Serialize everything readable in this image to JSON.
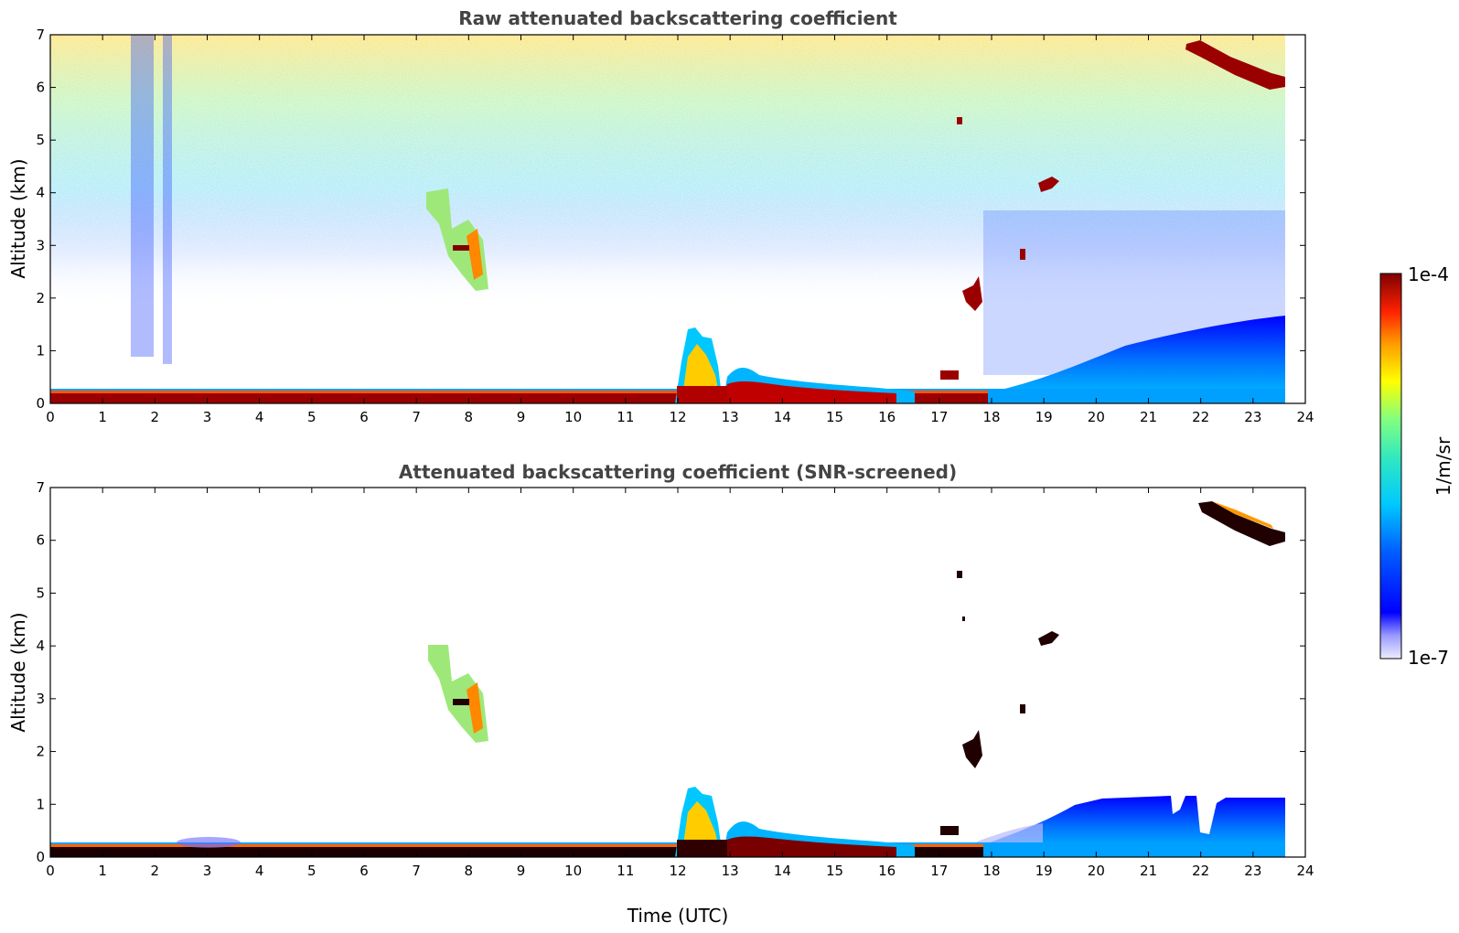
{
  "chart_data": [
    {
      "type": "heatmap",
      "title": "Raw attenuated backscattering coefficient",
      "xlabel": "",
      "ylabel": "Altitude (km)",
      "xlim": [
        0,
        24
      ],
      "ylim": [
        0,
        7
      ],
      "xticks": [
        "0",
        "1",
        "2",
        "3",
        "4",
        "5",
        "6",
        "7",
        "8",
        "9",
        "10",
        "11",
        "12",
        "13",
        "14",
        "15",
        "16",
        "17",
        "18",
        "19",
        "20",
        "21",
        "22",
        "23",
        "24"
      ],
      "yticks": [
        "0",
        "1",
        "2",
        "3",
        "4",
        "5",
        "6",
        "7"
      ],
      "data_end_time": 23.6,
      "features": [
        {
          "label": "surface layer",
          "t": [
            0,
            23.6
          ],
          "alt": [
            0,
            0.25
          ],
          "level": "high"
        },
        {
          "label": "boundary layer clouds",
          "t": [
            12,
            13
          ],
          "alt": [
            0,
            1.4
          ],
          "level": "medium"
        },
        {
          "label": "aerosol layer",
          "t": [
            13,
            16.5
          ],
          "alt": [
            0,
            0.7
          ],
          "level": "medium"
        },
        {
          "label": "mid-level cloud",
          "t": [
            7.2,
            8.4
          ],
          "alt": [
            2.2,
            4.0
          ],
          "level": "medium"
        },
        {
          "label": "cirrus",
          "t": [
            21.8,
            23.6
          ],
          "alt": [
            5.9,
            6.8
          ],
          "level": "high"
        },
        {
          "label": "cloud",
          "t": [
            19,
            19.3
          ],
          "alt": [
            4.0,
            4.3
          ],
          "level": "high"
        },
        {
          "label": "cloud",
          "t": [
            17.5,
            17.8
          ],
          "alt": [
            1.8,
            2.4
          ],
          "level": "high"
        },
        {
          "label": "noisy background",
          "t": [
            0,
            23.6
          ],
          "alt": [
            0.5,
            7
          ],
          "level": "noise"
        }
      ]
    },
    {
      "type": "heatmap",
      "title": "Attenuated backscattering coefficient (SNR-screened)",
      "xlabel": "Time (UTC)",
      "ylabel": "Altitude (km)",
      "xlim": [
        0,
        24
      ],
      "ylim": [
        0,
        7
      ],
      "xticks": [
        "0",
        "1",
        "2",
        "3",
        "4",
        "5",
        "6",
        "7",
        "8",
        "9",
        "10",
        "11",
        "12",
        "13",
        "14",
        "15",
        "16",
        "17",
        "18",
        "19",
        "20",
        "21",
        "22",
        "23",
        "24"
      ],
      "yticks": [
        "0",
        "1",
        "2",
        "3",
        "4",
        "5",
        "6",
        "7"
      ],
      "data_end_time": 23.6,
      "features": [
        {
          "label": "surface layer",
          "t": [
            0,
            23.6
          ],
          "alt": [
            0,
            0.25
          ],
          "level": "high"
        },
        {
          "label": "boundary layer clouds",
          "t": [
            12,
            13
          ],
          "alt": [
            0,
            1.2
          ],
          "level": "medium"
        },
        {
          "label": "aerosol layer",
          "t": [
            18,
            23.6
          ],
          "alt": [
            0,
            1.2
          ],
          "level": "low"
        },
        {
          "label": "mid-level cloud",
          "t": [
            7.2,
            8.4
          ],
          "alt": [
            2.2,
            4.0
          ],
          "level": "medium"
        },
        {
          "label": "cirrus",
          "t": [
            22,
            23.6
          ],
          "alt": [
            5.9,
            6.7
          ],
          "level": "high"
        }
      ]
    }
  ],
  "colorbar": {
    "label": "1/m/sr",
    "max_label": "1e-4",
    "min_label": "1e-7",
    "scale": "log",
    "colors": [
      "#e6e6ff",
      "#b3b3ff",
      "#0000ff",
      "#0064ff",
      "#00c8ff",
      "#40e0d0",
      "#7fff7f",
      "#d4ff2a",
      "#ffff00",
      "#ffaa00",
      "#ff4400",
      "#cc0000",
      "#7f0000"
    ]
  }
}
